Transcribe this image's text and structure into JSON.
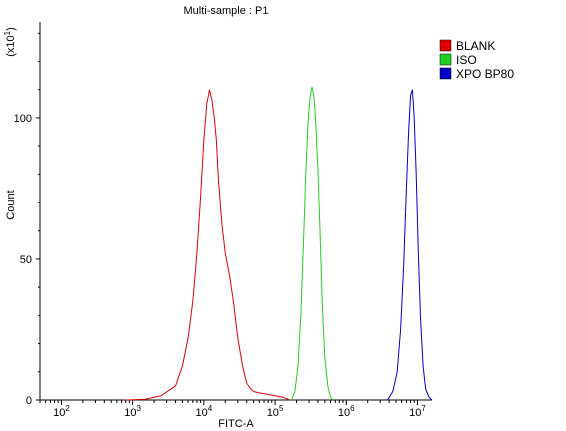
{
  "chart_data": {
    "type": "line",
    "title": "Multi-sample : P1",
    "xlabel": "FITC-A",
    "ylabel": "Count",
    "ylabel_multiplier": "(x10",
    "ylabel_multiplier_exp": "1",
    "ylabel_multiplier_close": ")",
    "x_scale": "log",
    "xlim": [
      50,
      16000000
    ],
    "ylim": [
      0,
      134
    ],
    "x_ticks": [
      {
        "value": 100,
        "base": "10",
        "exp": "2"
      },
      {
        "value": 1000,
        "base": "10",
        "exp": "3"
      },
      {
        "value": 10000,
        "base": "10",
        "exp": "4"
      },
      {
        "value": 100000,
        "base": "10",
        "exp": "5"
      },
      {
        "value": 1000000,
        "base": "10",
        "exp": "6"
      },
      {
        "value": 10000000,
        "base": "10",
        "exp": "7"
      }
    ],
    "y_ticks": [
      0,
      50,
      100
    ],
    "legend_position": "top-right",
    "series": [
      {
        "name": "BLANK",
        "color": "#e00000",
        "x": [
          800,
          1500,
          2500,
          4000,
          5000,
          6000,
          7000,
          8000,
          9000,
          10000,
          11000,
          12000,
          13000,
          14000,
          15000,
          16000,
          18000,
          20000,
          23000,
          26000,
          30000,
          35000,
          40000,
          45000,
          50000,
          60000,
          80000,
          100000,
          130000,
          160000
        ],
        "y": [
          0,
          0.3,
          1.5,
          5,
          12,
          22,
          35,
          52,
          72,
          92,
          105,
          110,
          106,
          100,
          92,
          78,
          62,
          52,
          44,
          35,
          22,
          12,
          6,
          4,
          3,
          2.5,
          2,
          1.5,
          1,
          0
        ]
      },
      {
        "name": "ISO",
        "color": "#20d020",
        "x": [
          170000,
          190000,
          210000,
          230000,
          250000,
          270000,
          290000,
          310000,
          330000,
          350000,
          370000,
          400000,
          430000,
          460000,
          500000,
          550000,
          600000,
          650000
        ],
        "y": [
          0,
          3,
          12,
          30,
          55,
          80,
          98,
          107,
          111,
          108,
          100,
          82,
          58,
          35,
          15,
          5,
          1,
          0
        ]
      },
      {
        "name": "XPO BP80",
        "color": "#0000c8",
        "x": [
          3800000,
          4500000,
          5200000,
          5800000,
          6400000,
          7000000,
          7500000,
          8000000,
          8500000,
          9000000,
          9600000,
          10200000,
          11000000,
          12000000,
          13000000,
          14500000,
          16000000
        ],
        "y": [
          0,
          3,
          10,
          25,
          48,
          75,
          95,
          108,
          110,
          100,
          80,
          55,
          30,
          12,
          4,
          1,
          0
        ]
      }
    ]
  }
}
